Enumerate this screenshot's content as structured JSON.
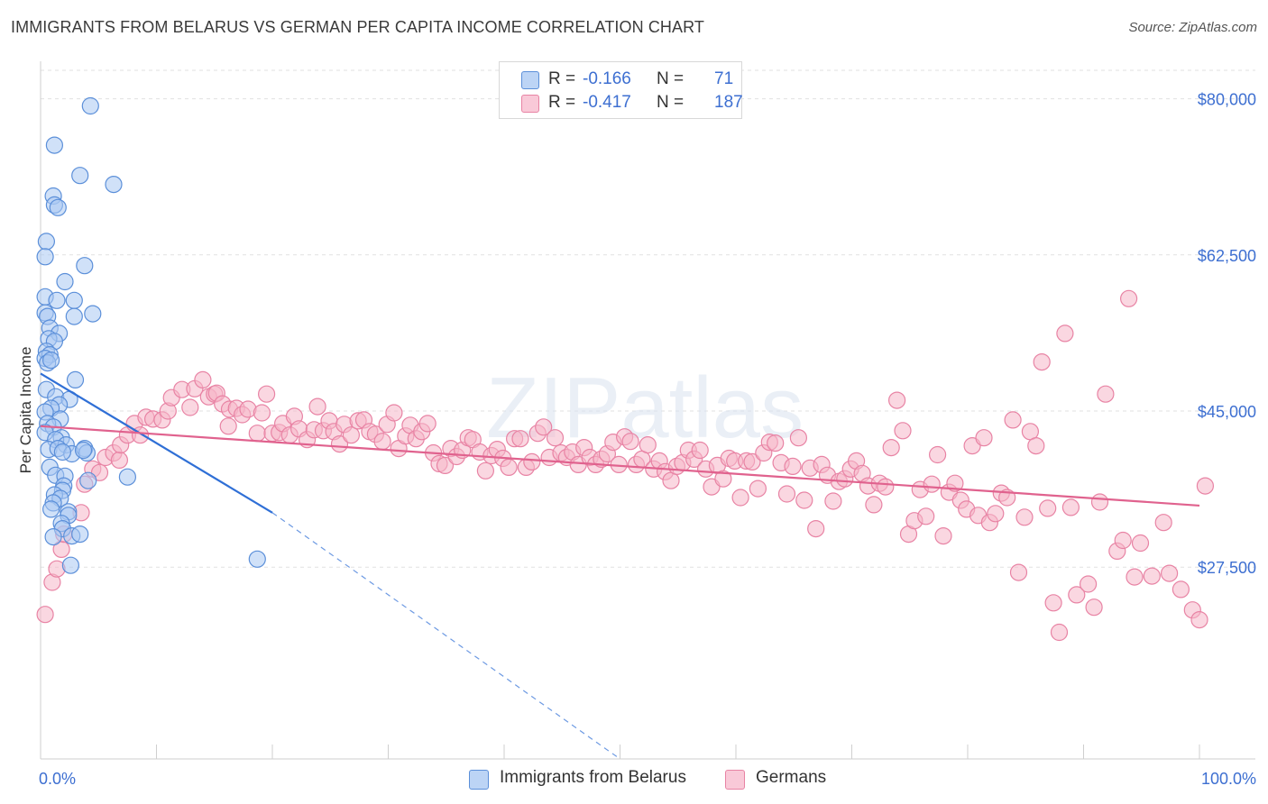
{
  "title": "IMMIGRANTS FROM BELARUS VS GERMAN PER CAPITA INCOME CORRELATION CHART",
  "source": "Source: ZipAtlas.com",
  "watermark": "ZIPatlas",
  "colors": {
    "blue_fill": "#a9c8f2",
    "blue_stroke": "#5b8fd9",
    "blue_line": "#2f6fd6",
    "pink_fill": "#f6b6c9",
    "pink_stroke": "#e883a4",
    "pink_line": "#e0628e",
    "axis_text": "#3d6fd1",
    "grid": "#e1e1e1"
  },
  "stats_legend": {
    "rows": [
      {
        "r_label": "R =",
        "r_value": "-0.166",
        "n_label": "N =",
        "n_value": "71"
      },
      {
        "r_label": "R =",
        "r_value": "-0.417",
        "n_label": "N =",
        "n_value": "187"
      }
    ]
  },
  "bottom_legend": {
    "blue": "Immigrants from Belarus",
    "pink": "Germans"
  },
  "chart_data": {
    "type": "scatter",
    "ylabel": "Per Capita Income",
    "xlim": [
      0,
      100
    ],
    "ylim": [
      6000,
      84000
    ],
    "x_tick_labels": [
      "0.0%",
      "100.0%"
    ],
    "y_ticks": [
      27500,
      45000,
      62500,
      80000
    ],
    "y_tick_labels": [
      "$27,500",
      "$45,000",
      "$62,500",
      "$80,000"
    ],
    "grid": "horizontal dashed",
    "series": [
      {
        "name": "Immigrants from Belarus",
        "trend": {
          "x": [
            0,
            20
          ],
          "y": [
            49200,
            33600
          ],
          "dashed_extension_to": {
            "x": 50,
            "y": 6000
          }
        },
        "points": [
          [
            4.3,
            79200
          ],
          [
            1.2,
            74800
          ],
          [
            3.4,
            71400
          ],
          [
            6.3,
            70400
          ],
          [
            1.1,
            69100
          ],
          [
            1.2,
            68100
          ],
          [
            1.5,
            67800
          ],
          [
            0.5,
            64000
          ],
          [
            0.4,
            62300
          ],
          [
            3.8,
            61300
          ],
          [
            2.1,
            59500
          ],
          [
            0.4,
            57800
          ],
          [
            1.4,
            57400
          ],
          [
            2.9,
            57400
          ],
          [
            0.4,
            56000
          ],
          [
            0.6,
            55600
          ],
          [
            4.5,
            55900
          ],
          [
            2.9,
            55600
          ],
          [
            0.8,
            54300
          ],
          [
            1.6,
            53700
          ],
          [
            0.7,
            53100
          ],
          [
            1.2,
            52800
          ],
          [
            0.5,
            51700
          ],
          [
            0.8,
            51300
          ],
          [
            0.4,
            50900
          ],
          [
            0.6,
            50400
          ],
          [
            0.9,
            50700
          ],
          [
            3.0,
            48500
          ],
          [
            0.5,
            47400
          ],
          [
            1.3,
            46600
          ],
          [
            2.5,
            46300
          ],
          [
            1.6,
            45700
          ],
          [
            0.9,
            45300
          ],
          [
            0.4,
            44900
          ],
          [
            1.7,
            44100
          ],
          [
            0.6,
            43600
          ],
          [
            1.1,
            43200
          ],
          [
            0.4,
            42600
          ],
          [
            1.8,
            42000
          ],
          [
            1.3,
            41800
          ],
          [
            2.2,
            41200
          ],
          [
            0.7,
            40700
          ],
          [
            1.5,
            40800
          ],
          [
            2.7,
            40200
          ],
          [
            3.8,
            40800
          ],
          [
            4.0,
            40300
          ],
          [
            3.7,
            40600
          ],
          [
            1.9,
            40400
          ],
          [
            0.8,
            38700
          ],
          [
            1.3,
            37800
          ],
          [
            2.1,
            37700
          ],
          [
            7.5,
            37600
          ],
          [
            4.1,
            37200
          ],
          [
            2.0,
            36600
          ],
          [
            1.9,
            36100
          ],
          [
            1.2,
            35600
          ],
          [
            1.7,
            35200
          ],
          [
            1.1,
            34700
          ],
          [
            0.9,
            34000
          ],
          [
            2.4,
            33700
          ],
          [
            2.4,
            33300
          ],
          [
            1.8,
            32400
          ],
          [
            1.9,
            31800
          ],
          [
            2.7,
            31000
          ],
          [
            3.4,
            31200
          ],
          [
            1.1,
            30900
          ],
          [
            18.7,
            28400
          ],
          [
            2.6,
            27700
          ]
        ]
      },
      {
        "name": "Germans",
        "trend": {
          "x": [
            0,
            100
          ],
          "y": [
            43300,
            34400
          ]
        },
        "points": [
          [
            0.4,
            22200
          ],
          [
            1.0,
            25800
          ],
          [
            1.4,
            27300
          ],
          [
            1.8,
            29500
          ],
          [
            2.0,
            31200
          ],
          [
            3.5,
            33600
          ],
          [
            3.8,
            36800
          ],
          [
            4.5,
            38500
          ],
          [
            5.1,
            38100
          ],
          [
            5.6,
            39800
          ],
          [
            6.3,
            40300
          ],
          [
            6.8,
            39500
          ],
          [
            6.9,
            41200
          ],
          [
            7.5,
            42300
          ],
          [
            8.1,
            43600
          ],
          [
            8.6,
            42300
          ],
          [
            9.1,
            44300
          ],
          [
            9.7,
            44100
          ],
          [
            10.5,
            44000
          ],
          [
            11.0,
            45000
          ],
          [
            11.3,
            46500
          ],
          [
            12.2,
            47400
          ],
          [
            12.9,
            45400
          ],
          [
            13.3,
            47500
          ],
          [
            14.0,
            48500
          ],
          [
            14.5,
            46600
          ],
          [
            15.0,
            46900
          ],
          [
            15.2,
            47000
          ],
          [
            15.7,
            45800
          ],
          [
            16.3,
            45200
          ],
          [
            16.2,
            43300
          ],
          [
            16.9,
            45300
          ],
          [
            17.4,
            44600
          ],
          [
            17.9,
            45200
          ],
          [
            18.7,
            42500
          ],
          [
            19.1,
            44800
          ],
          [
            19.5,
            46900
          ],
          [
            20.0,
            42500
          ],
          [
            20.6,
            42600
          ],
          [
            20.9,
            43600
          ],
          [
            21.5,
            42300
          ],
          [
            21.9,
            44400
          ],
          [
            22.3,
            43000
          ],
          [
            23.0,
            41800
          ],
          [
            23.6,
            42900
          ],
          [
            23.9,
            45500
          ],
          [
            24.4,
            42800
          ],
          [
            24.9,
            43900
          ],
          [
            25.3,
            42700
          ],
          [
            25.8,
            41300
          ],
          [
            26.2,
            43500
          ],
          [
            26.8,
            42300
          ],
          [
            27.4,
            43900
          ],
          [
            27.9,
            44000
          ],
          [
            28.4,
            42700
          ],
          [
            28.9,
            42400
          ],
          [
            29.5,
            41600
          ],
          [
            29.9,
            43500
          ],
          [
            30.5,
            44800
          ],
          [
            30.9,
            40800
          ],
          [
            31.5,
            42200
          ],
          [
            31.9,
            43400
          ],
          [
            32.4,
            41900
          ],
          [
            32.9,
            42700
          ],
          [
            33.4,
            43600
          ],
          [
            33.9,
            40300
          ],
          [
            34.4,
            39100
          ],
          [
            34.9,
            38900
          ],
          [
            35.4,
            40800
          ],
          [
            35.9,
            39900
          ],
          [
            36.4,
            40600
          ],
          [
            36.9,
            42000
          ],
          [
            37.3,
            41800
          ],
          [
            37.9,
            40400
          ],
          [
            38.4,
            38300
          ],
          [
            38.9,
            40000
          ],
          [
            39.4,
            40700
          ],
          [
            39.9,
            39700
          ],
          [
            40.4,
            38700
          ],
          [
            40.9,
            41900
          ],
          [
            41.4,
            41900
          ],
          [
            41.9,
            38700
          ],
          [
            42.4,
            39300
          ],
          [
            42.9,
            42500
          ],
          [
            43.4,
            43200
          ],
          [
            43.9,
            39800
          ],
          [
            44.4,
            42000
          ],
          [
            44.9,
            40300
          ],
          [
            45.4,
            39800
          ],
          [
            45.9,
            40400
          ],
          [
            46.4,
            39000
          ],
          [
            46.9,
            40900
          ],
          [
            47.4,
            39800
          ],
          [
            47.9,
            39000
          ],
          [
            48.4,
            39600
          ],
          [
            48.9,
            40200
          ],
          [
            49.4,
            41500
          ],
          [
            49.9,
            39000
          ],
          [
            50.4,
            42100
          ],
          [
            50.9,
            41600
          ],
          [
            51.4,
            39000
          ],
          [
            51.9,
            39600
          ],
          [
            52.4,
            41200
          ],
          [
            52.9,
            38500
          ],
          [
            53.4,
            39400
          ],
          [
            53.9,
            38200
          ],
          [
            54.4,
            37200
          ],
          [
            54.9,
            38800
          ],
          [
            55.4,
            39200
          ],
          [
            55.9,
            40600
          ],
          [
            56.4,
            39600
          ],
          [
            56.9,
            40600
          ],
          [
            57.4,
            38500
          ],
          [
            57.9,
            36500
          ],
          [
            58.4,
            38900
          ],
          [
            58.9,
            37400
          ],
          [
            59.4,
            39700
          ],
          [
            59.9,
            39400
          ],
          [
            60.4,
            35300
          ],
          [
            60.9,
            39400
          ],
          [
            61.4,
            39300
          ],
          [
            61.9,
            36300
          ],
          [
            62.4,
            40300
          ],
          [
            62.9,
            41500
          ],
          [
            63.4,
            41400
          ],
          [
            63.9,
            39200
          ],
          [
            64.4,
            35700
          ],
          [
            64.9,
            38800
          ],
          [
            65.4,
            42000
          ],
          [
            65.9,
            35000
          ],
          [
            66.4,
            38600
          ],
          [
            66.9,
            31800
          ],
          [
            67.4,
            39000
          ],
          [
            67.9,
            37800
          ],
          [
            68.4,
            34900
          ],
          [
            68.9,
            37100
          ],
          [
            69.4,
            37400
          ],
          [
            69.9,
            38500
          ],
          [
            70.4,
            39400
          ],
          [
            70.9,
            38000
          ],
          [
            71.4,
            36600
          ],
          [
            71.9,
            34500
          ],
          [
            72.4,
            36900
          ],
          [
            72.9,
            36500
          ],
          [
            73.4,
            40900
          ],
          [
            73.9,
            46200
          ],
          [
            74.4,
            42800
          ],
          [
            74.9,
            31200
          ],
          [
            75.4,
            32700
          ],
          [
            75.9,
            36200
          ],
          [
            76.4,
            33200
          ],
          [
            76.9,
            36800
          ],
          [
            77.4,
            40100
          ],
          [
            77.9,
            31000
          ],
          [
            78.4,
            35900
          ],
          [
            78.9,
            36900
          ],
          [
            79.4,
            35000
          ],
          [
            79.9,
            34000
          ],
          [
            80.4,
            41100
          ],
          [
            80.9,
            33300
          ],
          [
            81.4,
            42000
          ],
          [
            81.9,
            32500
          ],
          [
            82.4,
            33500
          ],
          [
            82.9,
            35800
          ],
          [
            83.4,
            35300
          ],
          [
            83.9,
            44000
          ],
          [
            84.4,
            26900
          ],
          [
            84.9,
            33100
          ],
          [
            85.4,
            42700
          ],
          [
            85.9,
            41100
          ],
          [
            86.4,
            50500
          ],
          [
            86.9,
            34100
          ],
          [
            87.4,
            23500
          ],
          [
            87.9,
            20200
          ],
          [
            88.4,
            53700
          ],
          [
            88.9,
            34200
          ],
          [
            89.4,
            24400
          ],
          [
            90.4,
            25600
          ],
          [
            90.9,
            23000
          ],
          [
            91.4,
            34800
          ],
          [
            91.9,
            46900
          ],
          [
            92.9,
            29300
          ],
          [
            93.4,
            30500
          ],
          [
            93.9,
            57600
          ],
          [
            94.4,
            26400
          ],
          [
            94.9,
            30200
          ],
          [
            95.9,
            26500
          ],
          [
            96.9,
            32500
          ],
          [
            97.4,
            26800
          ],
          [
            98.4,
            25000
          ],
          [
            99.4,
            22700
          ],
          [
            100.0,
            21600
          ],
          [
            100.5,
            36600
          ]
        ]
      }
    ]
  }
}
